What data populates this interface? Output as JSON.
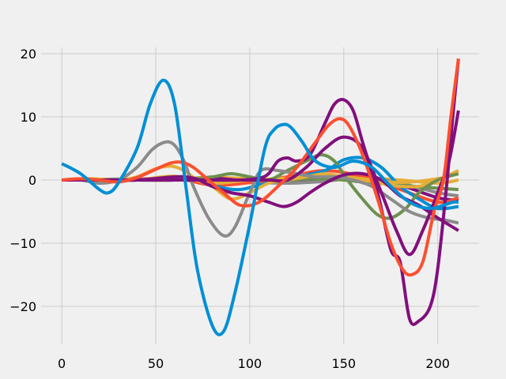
{
  "chart_data": {
    "type": "line",
    "title": "",
    "xlabel": "",
    "ylabel": "",
    "xlim": [
      -11,
      222
    ],
    "ylim": [
      -26,
      21
    ],
    "x_ticks": [
      0,
      50,
      100,
      150,
      200
    ],
    "y_ticks": [
      -20,
      -10,
      0,
      10,
      20
    ],
    "x_tick_labels": [
      "0",
      "50",
      "100",
      "150",
      "200"
    ],
    "y_tick_labels": [
      "−20",
      "−10",
      "0",
      "10",
      "20"
    ],
    "grid": true,
    "legend": "none",
    "colors": [
      "#008fd5",
      "#fc4f30",
      "#e5ae38",
      "#6d904f",
      "#8b8b8b",
      "#810f7c"
    ],
    "series": [
      {
        "color": "#008fd5",
        "x": [
          0,
          10,
          20,
          25,
          30,
          40,
          47,
          54,
          60,
          66,
          72,
          80,
          86,
          92,
          100,
          108,
          113,
          118,
          122,
          128,
          135,
          145,
          155,
          165,
          175,
          185,
          195,
          203,
          208,
          211
        ],
        "y": [
          2.6,
          1,
          -1.5,
          -2,
          -0.5,
          5,
          12,
          15.8,
          12,
          -1,
          -14,
          -23,
          -24,
          -18,
          -7,
          5,
          8,
          8.8,
          8.3,
          6,
          3,
          2,
          3,
          2,
          -1,
          -3.5,
          -4.5,
          -4,
          -3.5,
          -3.5
        ]
      },
      {
        "color": "#fc4f30",
        "x": [
          0,
          10,
          20,
          30,
          40,
          50,
          58,
          64,
          70,
          78,
          86,
          95,
          105,
          115,
          125,
          135,
          142,
          148,
          153,
          160,
          168,
          175,
          181,
          186,
          192,
          198,
          203,
          207,
          211
        ],
        "y": [
          0,
          0.2,
          0,
          -0.3,
          0.4,
          1.7,
          2.7,
          2.8,
          2,
          0,
          -2,
          -4,
          -3.5,
          -1,
          2,
          6,
          8.7,
          9.7,
          8.5,
          4,
          -3,
          -10,
          -14,
          -15,
          -13,
          -5,
          0,
          10,
          19.2
        ]
      },
      {
        "color": "#810f7c",
        "x": [
          0,
          20,
          40,
          60,
          80,
          95,
          105,
          110,
          115,
          120,
          125,
          132,
          140,
          145,
          150,
          155,
          160,
          168,
          175,
          180,
          185,
          190,
          196,
          200,
          205,
          208,
          211
        ],
        "y": [
          0,
          0,
          0,
          0,
          0,
          0,
          0.3,
          1,
          3,
          3.5,
          3,
          4,
          9,
          12,
          12.7,
          11,
          6,
          -2,
          -11,
          -13,
          -22,
          -22.3,
          -20,
          -14,
          0,
          10,
          19.2
        ]
      },
      {
        "color": "#810f7c",
        "x": [
          0,
          20,
          40,
          60,
          80,
          90,
          100,
          110,
          120,
          130,
          140,
          150,
          160,
          170,
          178,
          185,
          192,
          200,
          206,
          211
        ],
        "y": [
          0,
          0,
          0,
          0,
          0,
          0,
          0,
          0,
          0,
          2,
          5,
          6.8,
          5,
          -2,
          -8,
          -11.8,
          -8,
          -2,
          3,
          11
        ]
      },
      {
        "color": "#810f7c",
        "x": [
          0,
          20,
          40,
          60,
          70,
          80,
          90,
          100,
          110,
          118,
          125,
          132,
          140,
          150,
          160,
          170,
          180,
          190,
          200,
          211
        ],
        "y": [
          0,
          0,
          0,
          0.5,
          0.3,
          -1,
          -2,
          -2.5,
          -3.5,
          -4.2,
          -3.5,
          -2,
          -0.5,
          0.8,
          1,
          0,
          -2.5,
          -4,
          -6,
          -8
        ]
      },
      {
        "color": "#8b8b8b",
        "x": [
          0,
          10,
          20,
          30,
          40,
          48,
          55,
          60,
          65,
          70,
          78,
          86,
          92,
          100,
          106,
          115,
          125,
          135,
          145,
          155,
          165,
          175,
          185,
          195,
          203,
          211
        ],
        "y": [
          0,
          0,
          -0.5,
          0,
          2,
          4.8,
          6,
          5.5,
          3,
          -1,
          -6,
          -8.8,
          -7.5,
          -2,
          1.5,
          1.5,
          1,
          0.5,
          0.5,
          0,
          -1,
          -3,
          -5,
          -6,
          -6.3,
          -6.8
        ]
      },
      {
        "color": "#6d904f",
        "x": [
          0,
          20,
          40,
          60,
          80,
          90,
          100,
          110,
          120,
          130,
          138,
          145,
          152,
          160,
          168,
          175,
          183,
          190,
          200,
          211
        ],
        "y": [
          0,
          0,
          0,
          0,
          0.5,
          1,
          0.5,
          0,
          1.5,
          3,
          4,
          3,
          0,
          -3,
          -5.5,
          -6,
          -4.5,
          -2,
          0,
          1
        ]
      },
      {
        "color": "#e5ae38",
        "x": [
          0,
          15,
          30,
          40,
          50,
          58,
          65,
          72,
          80,
          90,
          100,
          110,
          120,
          130,
          140,
          150,
          160,
          170,
          180,
          190,
          200,
          211
        ],
        "y": [
          0,
          0.2,
          0,
          0.5,
          1.8,
          2.2,
          1.5,
          0,
          -1,
          -3,
          -2,
          -0.5,
          0,
          0.5,
          1,
          0.5,
          0,
          -0.5,
          -1,
          -1,
          0,
          1.5
        ]
      },
      {
        "color": "#e5ae38",
        "x": [
          0,
          20,
          40,
          60,
          80,
          100,
          120,
          140,
          160,
          180,
          200,
          211
        ],
        "y": [
          0,
          0,
          0,
          0.6,
          -0.5,
          0,
          0.3,
          0.8,
          0.2,
          -0.4,
          0.2,
          1
        ]
      },
      {
        "color": "#008fd5",
        "x": [
          0,
          20,
          40,
          60,
          75,
          85,
          95,
          105,
          120,
          140,
          150,
          160,
          170,
          180,
          190,
          200,
          211
        ],
        "y": [
          0,
          0,
          0,
          0.5,
          0,
          -1.2,
          -1.5,
          -0.8,
          0.2,
          1.5,
          3.2,
          3.5,
          2,
          -1,
          -3,
          -4.5,
          -4.2
        ]
      },
      {
        "color": "#fc4f30",
        "x": [
          0,
          20,
          40,
          60,
          80,
          100,
          120,
          140,
          160,
          180,
          200,
          211
        ],
        "y": [
          0,
          0,
          0,
          0.3,
          -0.8,
          -0.4,
          0.5,
          1.5,
          0.5,
          -1.5,
          -3.5,
          -2.8
        ]
      },
      {
        "color": "#6d904f",
        "x": [
          0,
          20,
          40,
          60,
          80,
          100,
          120,
          140,
          160,
          180,
          200,
          211
        ],
        "y": [
          0,
          0,
          0,
          0,
          0,
          0,
          0,
          0.2,
          -0.3,
          -0.8,
          -1.3,
          -1.5
        ]
      },
      {
        "color": "#8b8b8b",
        "x": [
          0,
          20,
          40,
          60,
          80,
          100,
          120,
          140,
          160,
          180,
          200,
          211
        ],
        "y": [
          0,
          0.1,
          0.2,
          0.2,
          0,
          -0.3,
          -0.5,
          -0.2,
          0.4,
          -0.5,
          -2,
          -2.5
        ]
      },
      {
        "color": "#810f7c",
        "x": [
          0,
          20,
          40,
          60,
          80,
          100,
          120,
          140,
          160,
          180,
          200,
          211
        ],
        "y": [
          0,
          0,
          0,
          0,
          0.3,
          -0.2,
          -0.4,
          0,
          0.6,
          -0.8,
          -2.8,
          -3.2
        ]
      },
      {
        "color": "#e5ae38",
        "x": [
          0,
          20,
          40,
          60,
          80,
          100,
          120,
          140,
          160,
          180,
          200,
          211
        ],
        "y": [
          0,
          0,
          0,
          0.2,
          0.4,
          0.2,
          -0.2,
          0,
          0.3,
          0,
          -0.5,
          0
        ]
      }
    ]
  }
}
